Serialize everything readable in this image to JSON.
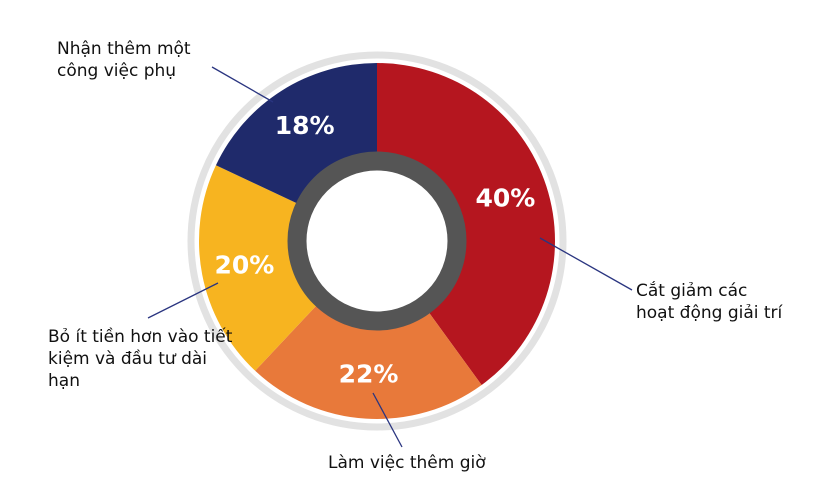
{
  "chart_data": {
    "type": "donut",
    "categories": [
      "Cắt giảm các hoạt động giải trí",
      "Làm việc thêm giờ",
      "Bỏ ít tiền hơn vào tiết kiệm và đầu tư dài hạn",
      "Nhận thêm một công việc phụ"
    ],
    "values": [
      40,
      22,
      20,
      18
    ],
    "value_labels": [
      "40%",
      "22%",
      "20%",
      "18%"
    ],
    "colors": [
      "#b5161f",
      "#e8793a",
      "#f7b420",
      "#1f2a6b"
    ]
  }
}
